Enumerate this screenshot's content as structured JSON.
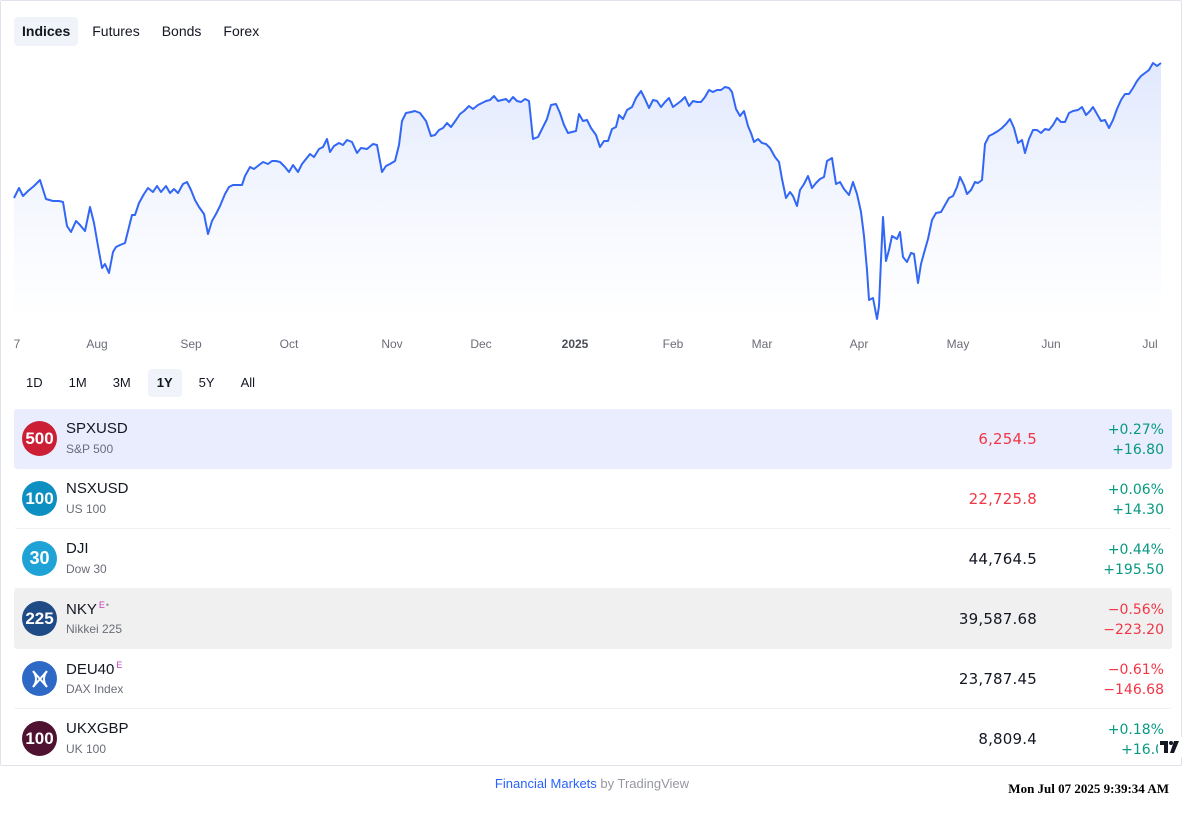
{
  "tabs": [
    {
      "label": "Indices",
      "active": true
    },
    {
      "label": "Futures",
      "active": false
    },
    {
      "label": "Bonds",
      "active": false
    },
    {
      "label": "Forex",
      "active": false
    }
  ],
  "chart": {
    "line_color": "#3267f6",
    "fill_color": "#e8eefe",
    "axis_labels": [
      "7",
      "Aug",
      "Sep",
      "Oct",
      "Nov",
      "Dec",
      "2025",
      "Feb",
      "Mar",
      "Apr",
      "May",
      "Jun",
      "Jul"
    ],
    "bold_label": "2025"
  },
  "ranges": [
    {
      "label": "1D",
      "active": false
    },
    {
      "label": "1M",
      "active": false
    },
    {
      "label": "3M",
      "active": false
    },
    {
      "label": "1Y",
      "active": true
    },
    {
      "label": "5Y",
      "active": false
    },
    {
      "label": "All",
      "active": false
    }
  ],
  "rows": [
    {
      "badge": "500",
      "badge_color": "#cc1f36",
      "symbol": "SPXUSD",
      "desc": "S&P 500",
      "price": "6,254.5",
      "price_dir": "down",
      "pct": "+0.27%",
      "abs": "+16.80",
      "change_dir": "up",
      "sup": "",
      "dot": "",
      "state": "selected"
    },
    {
      "badge": "100",
      "badge_color": "#0e8fc2",
      "symbol": "NSXUSD",
      "desc": "US 100",
      "price": "22,725.8",
      "price_dir": "down",
      "pct": "+0.06%",
      "abs": "+14.30",
      "change_dir": "up",
      "sup": "",
      "dot": "",
      "state": ""
    },
    {
      "badge": "30",
      "badge_color": "#1fa3d6",
      "symbol": "DJI",
      "desc": "Dow 30",
      "price": "44,764.5",
      "price_dir": "neutral",
      "pct": "+0.44%",
      "abs": "+195.50",
      "change_dir": "up",
      "sup": "",
      "dot": "",
      "state": ""
    },
    {
      "badge": "225",
      "badge_color": "#1e4a86",
      "symbol": "NKY",
      "desc": "Nikkei 225",
      "price": "39,587.68",
      "price_dir": "neutral",
      "pct": "−0.56%",
      "abs": "−223.20",
      "change_dir": "down",
      "sup": "E",
      "dot": "•",
      "state": "hover"
    },
    {
      "badge": "x-icon",
      "badge_color": "#2f69c6",
      "symbol": "DEU40",
      "desc": "DAX Index",
      "price": "23,787.45",
      "price_dir": "neutral",
      "pct": "−0.61%",
      "abs": "−146.68",
      "change_dir": "down",
      "sup": "E",
      "dot": "",
      "state": ""
    },
    {
      "badge": "100",
      "badge_color": "#4f1230",
      "symbol": "UKXGBP",
      "desc": "UK 100",
      "price": "8,809.4",
      "price_dir": "neutral",
      "pct": "+0.18%",
      "abs": "+16.0",
      "change_dir": "up",
      "sup": "",
      "dot": "",
      "state": ""
    }
  ],
  "footer": {
    "link": "Financial Markets",
    "by": " by TradingView"
  },
  "timestamp": "Mon Jul 07 2025 9:39:34 AM"
}
